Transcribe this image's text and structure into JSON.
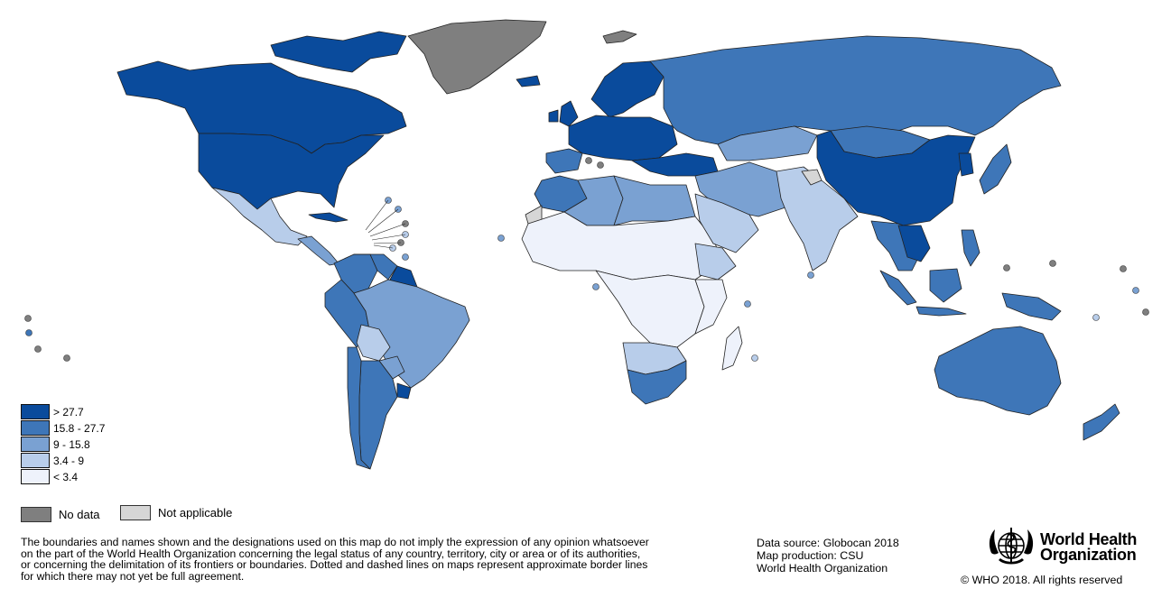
{
  "colors": {
    "gt_27_7": "#0a4b9c",
    "c15_8_27_7": "#3e76b8",
    "c9_15_8": "#7aa1d2",
    "c3_4_9": "#b8cdea",
    "lt_3_4": "#eef2fb",
    "no_data": "#7f7f7f",
    "not_applicable": "#d6d6d6",
    "border": "#222222"
  },
  "legend": {
    "items": [
      {
        "label": "> 27.7",
        "color": "#0a4b9c"
      },
      {
        "label": "15.8 - 27.7",
        "color": "#3e76b8"
      },
      {
        "label": "9 - 15.8",
        "color": "#7aa1d2"
      },
      {
        "label": "3.4 - 9",
        "color": "#b8cdea"
      },
      {
        "label": "< 3.4",
        "color": "#eef2fb"
      }
    ],
    "no_data": "No data",
    "not_applicable": "Not applicable"
  },
  "disclaimer": [
    "The boundaries and names shown and the designations used on this map do not imply the expression of any opinion whatsoever",
    "on the part of the World Health Organization concerning the legal status of any country, territory, city or area or of its authorities,",
    "or concerning the delimitation of its frontiers or boundaries. Dotted and dashed lines on maps represent approximate border lines",
    "for which there may not yet be full agreement."
  ],
  "credits": {
    "source": "Data source: Globocan 2018",
    "production": "Map production: CSU",
    "org": "World Health Organization"
  },
  "logo": {
    "line1": "World Health",
    "line2": "Organization",
    "icon": "who-emblem-icon"
  },
  "copyright": "© WHO 2018. All rights reserved"
}
